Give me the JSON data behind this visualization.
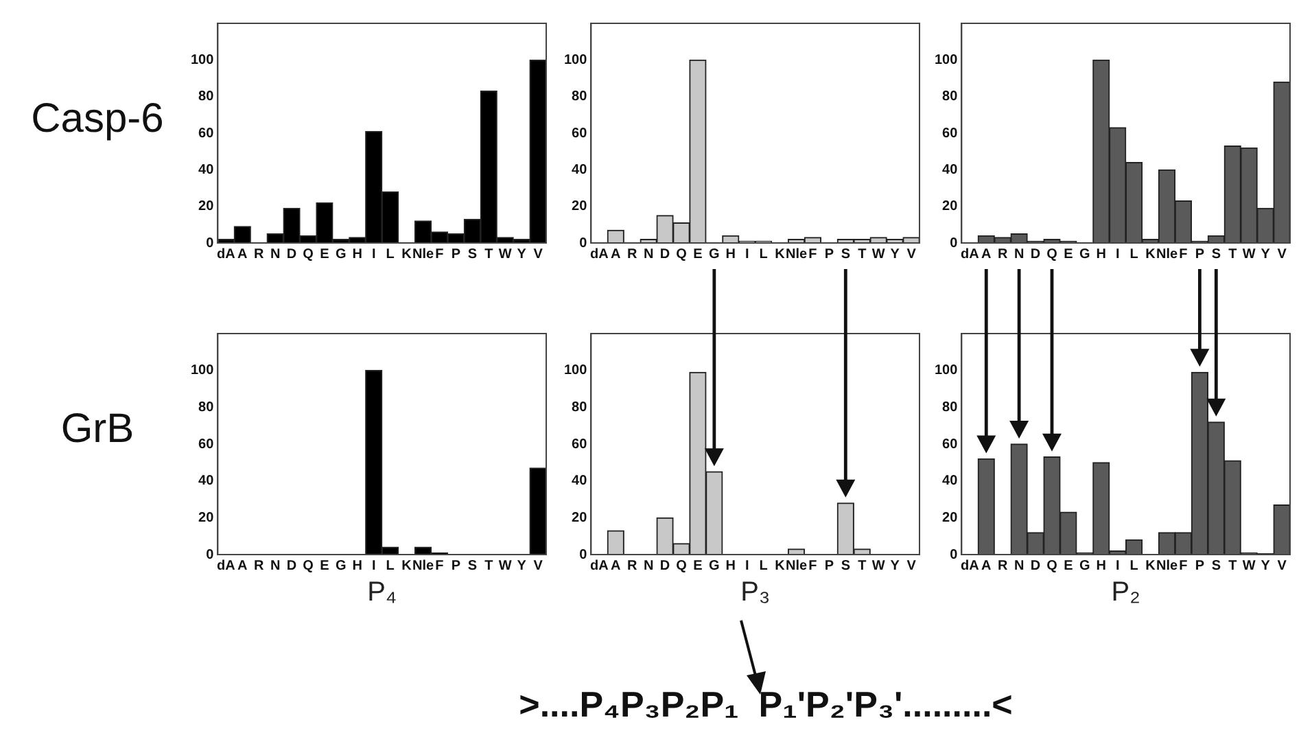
{
  "chart_data": [
    {
      "type": "bar",
      "ylabel": "Casp-6",
      "categories": [
        "dA",
        "A",
        "R",
        "N",
        "D",
        "Q",
        "E",
        "G",
        "H",
        "I",
        "L",
        "K",
        "Nle",
        "F",
        "P",
        "S",
        "T",
        "W",
        "Y",
        "V"
      ],
      "values": [
        2,
        9,
        0,
        5,
        19,
        4,
        22,
        2,
        3,
        61,
        28,
        0,
        12,
        6,
        5,
        13,
        83,
        3,
        2,
        100
      ],
      "color": "#000000",
      "ylim": [
        0,
        120
      ],
      "yticks": [
        0,
        20,
        40,
        60,
        80,
        100
      ]
    },
    {
      "type": "bar",
      "categories": [
        "dA",
        "A",
        "R",
        "N",
        "D",
        "Q",
        "E",
        "G",
        "H",
        "I",
        "L",
        "K",
        "Nle",
        "F",
        "P",
        "S",
        "T",
        "W",
        "Y",
        "V"
      ],
      "values": [
        0,
        7,
        0,
        2,
        15,
        11,
        100,
        0,
        4,
        1,
        1,
        0,
        2,
        3,
        0,
        2,
        2,
        3,
        2,
        3
      ],
      "color": "#c8c8c8",
      "ylim": [
        0,
        120
      ],
      "yticks": [
        0,
        20,
        40,
        60,
        80,
        100
      ]
    },
    {
      "type": "bar",
      "categories": [
        "dA",
        "A",
        "R",
        "N",
        "D",
        "Q",
        "E",
        "G",
        "H",
        "I",
        "L",
        "K",
        "Nle",
        "F",
        "P",
        "S",
        "T",
        "W",
        "Y",
        "V"
      ],
      "values": [
        0,
        4,
        3,
        5,
        1,
        2,
        1,
        0,
        100,
        63,
        44,
        2,
        40,
        23,
        1,
        4,
        53,
        52,
        19,
        88
      ],
      "color": "#5a5a5a",
      "ylim": [
        0,
        120
      ],
      "yticks": [
        0,
        20,
        40,
        60,
        80,
        100
      ]
    },
    {
      "type": "bar",
      "ylabel": "GrB",
      "xlabel": "P₄",
      "categories": [
        "dA",
        "A",
        "R",
        "N",
        "D",
        "Q",
        "E",
        "G",
        "H",
        "I",
        "L",
        "K",
        "Nle",
        "F",
        "P",
        "S",
        "T",
        "W",
        "Y",
        "V"
      ],
      "values": [
        0,
        0,
        0,
        0,
        0,
        0,
        0,
        0,
        0,
        100,
        4,
        0,
        4,
        1,
        0,
        0,
        0,
        0,
        0,
        47
      ],
      "color": "#000000",
      "ylim": [
        0,
        120
      ],
      "yticks": [
        0,
        20,
        40,
        60,
        80,
        100
      ]
    },
    {
      "type": "bar",
      "xlabel": "P₃",
      "categories": [
        "dA",
        "A",
        "R",
        "N",
        "D",
        "Q",
        "E",
        "G",
        "H",
        "I",
        "L",
        "K",
        "Nle",
        "F",
        "P",
        "S",
        "T",
        "W",
        "Y",
        "V"
      ],
      "values": [
        0,
        13,
        0,
        0,
        20,
        6,
        99,
        45,
        0,
        0,
        0,
        0,
        3,
        0,
        0,
        28,
        3,
        0,
        0,
        0
      ],
      "color": "#c8c8c8",
      "ylim": [
        0,
        120
      ],
      "yticks": [
        0,
        20,
        40,
        60,
        80,
        100
      ],
      "annotations": [
        ">....P₄P₃P₂P₁  P₁'P₂'P₃'.........<"
      ]
    },
    {
      "type": "bar",
      "xlabel": "P₂",
      "categories": [
        "dA",
        "A",
        "R",
        "N",
        "D",
        "Q",
        "E",
        "G",
        "H",
        "I",
        "L",
        "K",
        "Nle",
        "F",
        "P",
        "S",
        "T",
        "W",
        "Y",
        "V"
      ],
      "values": [
        0,
        52,
        0,
        60,
        12,
        53,
        23,
        1,
        50,
        2,
        8,
        0,
        12,
        12,
        99,
        72,
        51,
        1,
        0.5,
        27
      ],
      "color": "#5a5a5a",
      "ylim": [
        0,
        120
      ],
      "yticks": [
        0,
        20,
        40,
        60,
        80,
        100
      ]
    }
  ]
}
